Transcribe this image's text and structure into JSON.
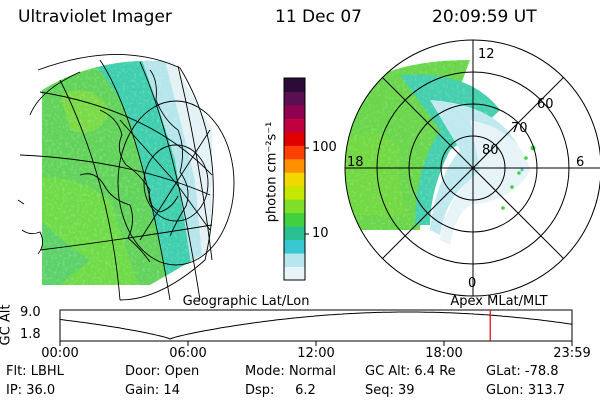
{
  "header": {
    "instrument": "Ultraviolet Imager",
    "date": "11 Dec 07",
    "time": "20:09:59 UT"
  },
  "colorbar": {
    "unit_label": "photon cm⁻²s⁻¹",
    "ticks": [
      "100",
      "10"
    ],
    "colors": [
      "#e8f4fa",
      "#b8e6ee",
      "#38c8d2",
      "#28c090",
      "#40d040",
      "#7ede28",
      "#c4e800",
      "#f0d800",
      "#ff9000",
      "#ff4000",
      "#e00000",
      "#c00040",
      "#900050",
      "#5a1050",
      "#2a0c36"
    ]
  },
  "left_map": {
    "caption": "Geographic Lat/Lon"
  },
  "right_map": {
    "caption": "Apex MLat/MLT",
    "clock_labels": {
      "top": "12",
      "left": "18",
      "right": "6",
      "bottom": "0"
    },
    "lat_labels": [
      "60",
      "70",
      "80"
    ]
  },
  "altitude_plot": {
    "ylabel": "GC Alt",
    "ymax_label": "9.0",
    "ymin_label": "1.8",
    "xticks": [
      "00:00",
      "06:00",
      "12:00",
      "18:00",
      "23:59"
    ],
    "marker_color": "#e00000"
  },
  "footer": {
    "row1": [
      {
        "label": "Flt:",
        "value": "LBHL"
      },
      {
        "label": "Door:",
        "value": "Open"
      },
      {
        "label": "Mode:",
        "value": "Normal"
      },
      {
        "label": "GC Alt:",
        "value": "6.4 Re"
      },
      {
        "label": "GLat:",
        "value": "-78.8"
      }
    ],
    "row2": [
      {
        "label": "IP:",
        "value": "36.0"
      },
      {
        "label": "Gain:",
        "value": "14"
      },
      {
        "label": "Dsp:",
        "value": "6.2"
      },
      {
        "label": "Seq:",
        "value": "39"
      },
      {
        "label": "GLon:",
        "value": "313.7"
      }
    ]
  }
}
